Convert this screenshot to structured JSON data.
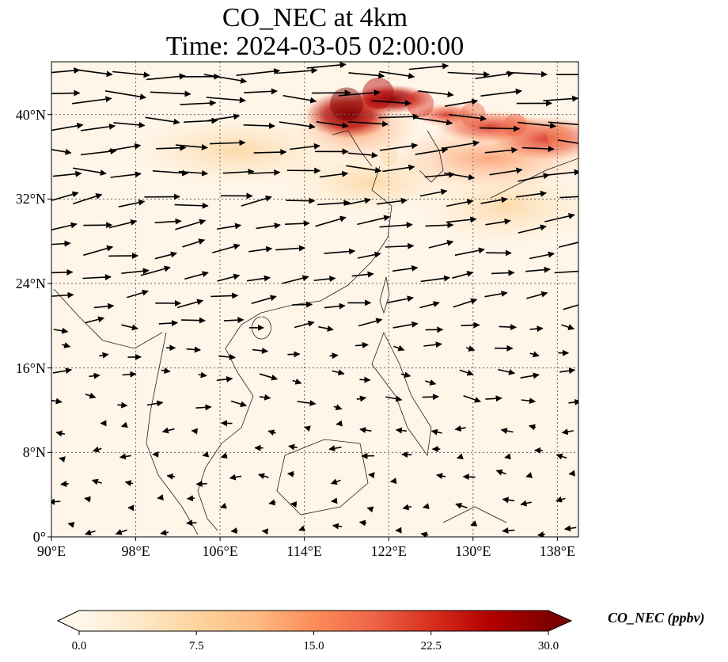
{
  "title": {
    "line1": "CO_NEC at 4km",
    "line2": "Time: 2024-03-05 02:00:00"
  },
  "map": {
    "lon_range": [
      90,
      140
    ],
    "lat_range": [
      0,
      45
    ],
    "gridlines": true,
    "lat_ticks": [
      {
        "lat": 0,
        "label": "0°"
      },
      {
        "lat": 8,
        "label": "8°N"
      },
      {
        "lat": 16,
        "label": "16°N"
      },
      {
        "lat": 24,
        "label": "24°N"
      },
      {
        "lat": 32,
        "label": "32°N"
      },
      {
        "lat": 40,
        "label": "40°N"
      }
    ],
    "lon_ticks": [
      {
        "lon": 90,
        "label": "90°E"
      },
      {
        "lon": 98,
        "label": "98°E"
      },
      {
        "lon": 106,
        "label": "106°E"
      },
      {
        "lon": 114,
        "label": "114°E"
      },
      {
        "lon": 122,
        "label": "122°E"
      },
      {
        "lon": 130,
        "label": "130°E"
      },
      {
        "lon": 138,
        "label": "138°E"
      }
    ],
    "field": "CO_NEC concentration at 4 km (filled), wind vectors (arrows)",
    "high_concentration_region": "Northeast China / Korea / Japan band near 36–43°N, values up to ~30 ppbv"
  },
  "colorbar": {
    "label": "CO_NEC (ppbv)",
    "colormap": "OrRd",
    "min": 0.0,
    "max": 30.0,
    "extend": "both",
    "ticks": [
      "0.0",
      "7.5",
      "15.0",
      "22.5",
      "30.0"
    ],
    "tick_values": [
      0,
      7.5,
      15,
      22.5,
      30
    ],
    "colors": [
      "#fff7ec",
      "#fee8c8",
      "#fdd49e",
      "#fdbb84",
      "#fc8d59",
      "#ef6548",
      "#d7301f",
      "#b30000",
      "#7f0000"
    ]
  },
  "chart_data": {
    "type": "heatmap",
    "title": "CO_NEC at 4km\nTime: 2024-03-05 02:00:00",
    "xlabel": "",
    "ylabel": "",
    "xlim": [
      90,
      140
    ],
    "ylim": [
      0,
      45
    ],
    "value_range": [
      0,
      30
    ],
    "hotspots": [
      {
        "lon": 118,
        "lat": 41,
        "value": 30
      },
      {
        "lon": 121,
        "lat": 42,
        "value": 28
      },
      {
        "lon": 125,
        "lat": 41,
        "value": 22
      },
      {
        "lon": 130,
        "lat": 40,
        "value": 20
      },
      {
        "lon": 134,
        "lat": 39,
        "value": 17
      },
      {
        "lon": 138,
        "lat": 38,
        "value": 15
      },
      {
        "lon": 122,
        "lat": 36,
        "value": 9
      },
      {
        "lon": 114,
        "lat": 35,
        "value": 4
      }
    ]
  }
}
